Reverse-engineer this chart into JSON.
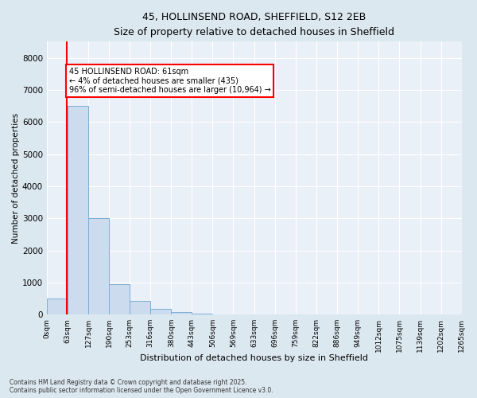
{
  "title_line1": "45, HOLLINSEND ROAD, SHEFFIELD, S12 2EB",
  "title_line2": "Size of property relative to detached houses in Sheffield",
  "xlabel": "Distribution of detached houses by size in Sheffield",
  "ylabel": "Number of detached properties",
  "bar_color": "#ccdcee",
  "bar_edge_color": "#7aaed6",
  "background_color": "#eaf0f8",
  "fig_background_color": "#dce8f0",
  "grid_color": "#ffffff",
  "property_size_sqm": 61,
  "property_line_color": "red",
  "bin_edges": [
    0,
    63,
    127,
    190,
    253,
    316,
    380,
    443,
    506,
    569,
    633,
    696,
    759,
    822,
    886,
    949,
    1012,
    1075,
    1139,
    1202,
    1265
  ],
  "bin_labels": [
    "0sqm",
    "63sqm",
    "127sqm",
    "190sqm",
    "253sqm",
    "316sqm",
    "380sqm",
    "443sqm",
    "506sqm",
    "569sqm",
    "633sqm",
    "696sqm",
    "759sqm",
    "822sqm",
    "886sqm",
    "949sqm",
    "1012sqm",
    "1075sqm",
    "1139sqm",
    "1202sqm",
    "1265sqm"
  ],
  "bar_heights": [
    500,
    6500,
    3000,
    950,
    430,
    180,
    80,
    40,
    0,
    0,
    0,
    0,
    0,
    0,
    0,
    0,
    0,
    0,
    0,
    0
  ],
  "ylim": [
    0,
    8500
  ],
  "yticks": [
    0,
    1000,
    2000,
    3000,
    4000,
    5000,
    6000,
    7000,
    8000
  ],
  "annotation_text": "45 HOLLINSEND ROAD: 61sqm\n← 4% of detached houses are smaller (435)\n96% of semi-detached houses are larger (10,964) →",
  "annotation_box_color": "white",
  "annotation_box_edge_color": "red",
  "footnote_line1": "Contains HM Land Registry data © Crown copyright and database right 2025.",
  "footnote_line2": "Contains public sector information licensed under the Open Government Licence v3.0."
}
